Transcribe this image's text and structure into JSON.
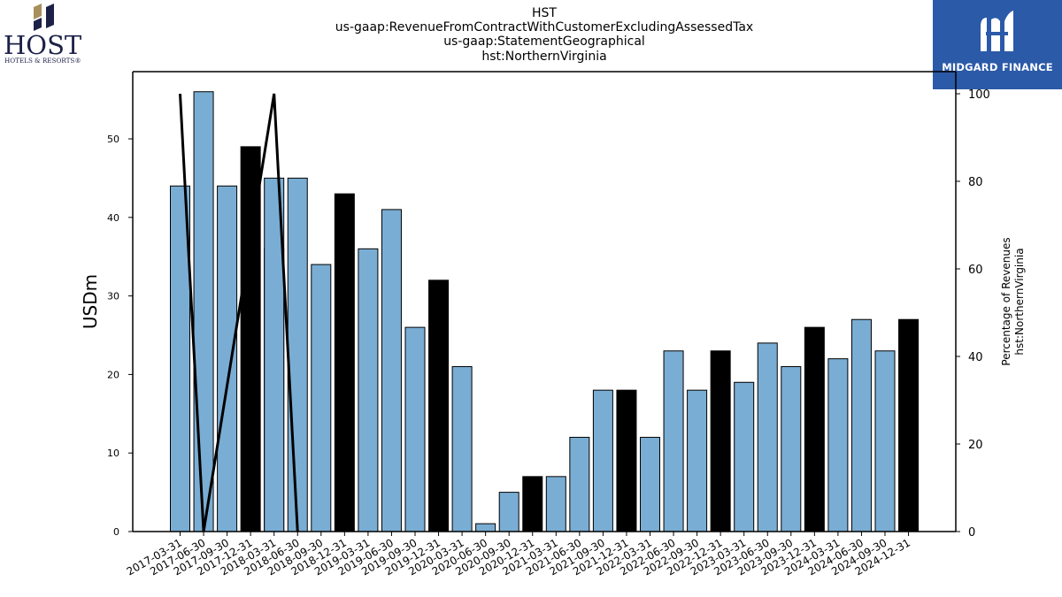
{
  "titles": {
    "line1": "HST",
    "line2": "us-gaap:RevenueFromContractWithCustomerExcludingAssessedTax",
    "line3": "us-gaap:StatementGeographical",
    "line4": "hst:NorthernVirginia"
  },
  "logos": {
    "host_name": "HOST",
    "host_sub": "HOTELS & RESORTS®",
    "midgard_name": "MIDGARD FINANCE"
  },
  "colors": {
    "bar_light": "#7aadd3",
    "bar_dark": "#000000",
    "line": "#000000",
    "midgard_bg": "#2b5aa8",
    "host_navy": "#1c2148",
    "host_gold": "#a8905c"
  },
  "chart_data": {
    "type": "bar",
    "categories": [
      "2017-03-31",
      "2017-06-30",
      "2017-09-30",
      "2017-12-31",
      "2018-03-31",
      "2018-06-30",
      "2018-09-30",
      "2018-12-31",
      "2019-03-31",
      "2019-06-30",
      "2019-09-30",
      "2019-12-31",
      "2020-03-31",
      "2020-06-30",
      "2020-09-30",
      "2020-12-31",
      "2021-03-31",
      "2021-06-30",
      "2021-09-30",
      "2021-12-31",
      "2022-03-31",
      "2022-06-30",
      "2022-09-30",
      "2022-12-31",
      "2023-03-31",
      "2023-06-30",
      "2023-09-30",
      "2023-12-31",
      "2024-03-31",
      "2024-06-30",
      "2024-09-30",
      "2024-12-31"
    ],
    "values": [
      44,
      56,
      44,
      49,
      36,
      45,
      34,
      43,
      36,
      41,
      26,
      32,
      21,
      1,
      5,
      7,
      7,
      12,
      18,
      18,
      12,
      23,
      18,
      23,
      19,
      24,
      21,
      26,
      22,
      27,
      23,
      27
    ],
    "overlay_bars": [
      {
        "category": "2018-03-31",
        "value": 45
      }
    ],
    "dark_categories": [
      "2017-12-31",
      "2018-12-31",
      "2019-12-31",
      "2020-12-31",
      "2021-12-31",
      "2022-12-31",
      "2023-12-31",
      "2024-12-31"
    ],
    "line_series": {
      "x": [
        "2017-03-31",
        "2017-06-30",
        "2018-03-31",
        "2018-06-30"
      ],
      "y": [
        100,
        0,
        100,
        0
      ]
    },
    "ylabel": "USDm",
    "ylabel_right_line1": "Percentage of Revenues",
    "ylabel_right_line2": "hst:NorthernVirginia",
    "ylim": [
      0,
      58.5
    ],
    "yticks": [
      0,
      10,
      20,
      30,
      40,
      50
    ],
    "y2lim": [
      0,
      105
    ],
    "y2ticks": [
      0,
      20,
      40,
      60,
      80,
      100
    ]
  }
}
